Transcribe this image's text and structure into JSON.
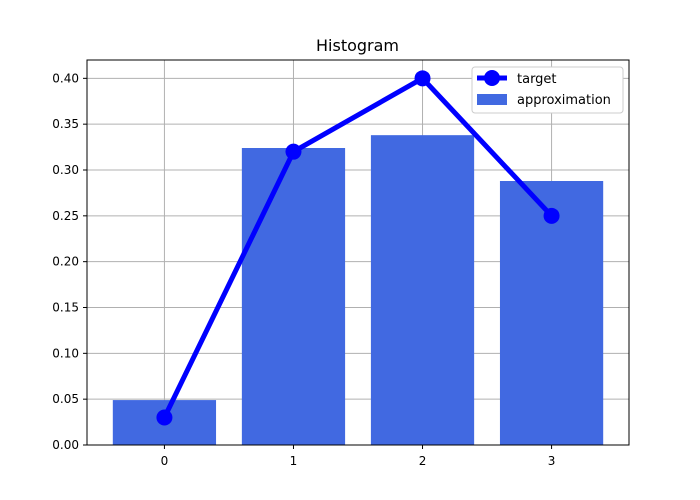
{
  "chart_data": {
    "type": "bar",
    "title": "Histogram",
    "xlabel": "",
    "ylabel": "",
    "categories": [
      "0",
      "1",
      "2",
      "3"
    ],
    "x": [
      0,
      1,
      2,
      3
    ],
    "xlim": [
      -0.6,
      3.6
    ],
    "ylim": [
      0.0,
      0.42
    ],
    "yticks": [
      0.0,
      0.05,
      0.1,
      0.15,
      0.2,
      0.25,
      0.3,
      0.35,
      0.4
    ],
    "grid": true,
    "legend_position": "top-right",
    "series": [
      {
        "name": "target",
        "type": "line",
        "color": "#0000ff",
        "marker": "circle",
        "values": [
          0.03,
          0.32,
          0.4,
          0.25
        ]
      },
      {
        "name": "approximation",
        "type": "bar",
        "color": "#4169e1",
        "values": [
          0.049,
          0.324,
          0.338,
          0.288
        ]
      }
    ]
  }
}
